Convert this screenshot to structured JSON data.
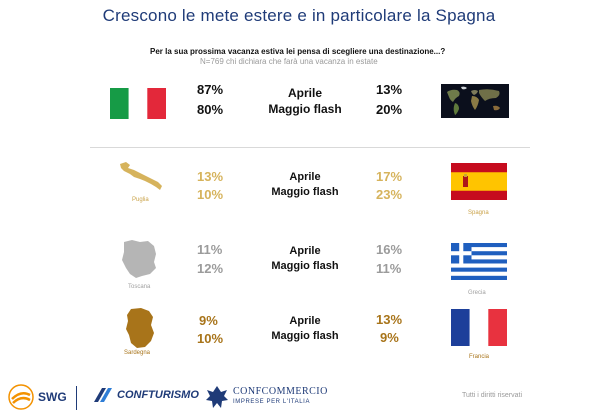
{
  "title": "Crescono le mete estere e in particolare la Spagna",
  "question": "Per la sua prossima vacanza estiva lei pensa di scegliere una destinazione...?",
  "sample_note": "N=769 chi dichiara che farà una vacanza in estate",
  "periods": {
    "april": "Aprile",
    "may": "Maggio flash"
  },
  "rows": {
    "italy_world": {
      "left_april": "87%",
      "left_may": "80%",
      "right_april": "13%",
      "right_may": "20%"
    },
    "puglia_spagna": {
      "left_label": "Puglia",
      "right_label": "Spagna",
      "left_april": "13%",
      "left_may": "10%",
      "right_april": "17%",
      "right_may": "23%"
    },
    "toscana_grecia": {
      "left_label": "Toscana",
      "right_label": "Grecia",
      "left_april": "11%",
      "left_may": "12%",
      "right_april": "16%",
      "right_may": "11%"
    },
    "sardegna_francia": {
      "left_label": "Sardegna",
      "right_label": "Francia",
      "left_april": "9%",
      "left_may": "10%",
      "right_april": "13%",
      "right_may": "9%"
    }
  },
  "footer": {
    "swg": "SWG",
    "confturismo": "CONFTURISMO",
    "confcommercio": "CONFCOMMERCIO",
    "confcommercio_sub": "IMPRESE PER L'ITALIA",
    "rights": "Tutti i diritti riservati"
  },
  "colors": {
    "title_blue": "#1f3b78",
    "gold": "#d6b35c",
    "grey": "#9b9b9b",
    "brown": "#a8741a",
    "italy_green": "#169b46",
    "italy_red": "#e3283a",
    "spain_red": "#c60b1e",
    "spain_yellow": "#ffc400",
    "greece_blue": "#1f5fbf",
    "france_blue": "#1d3f9a",
    "france_red": "#e8323f",
    "swg_orange": "#f39200"
  }
}
